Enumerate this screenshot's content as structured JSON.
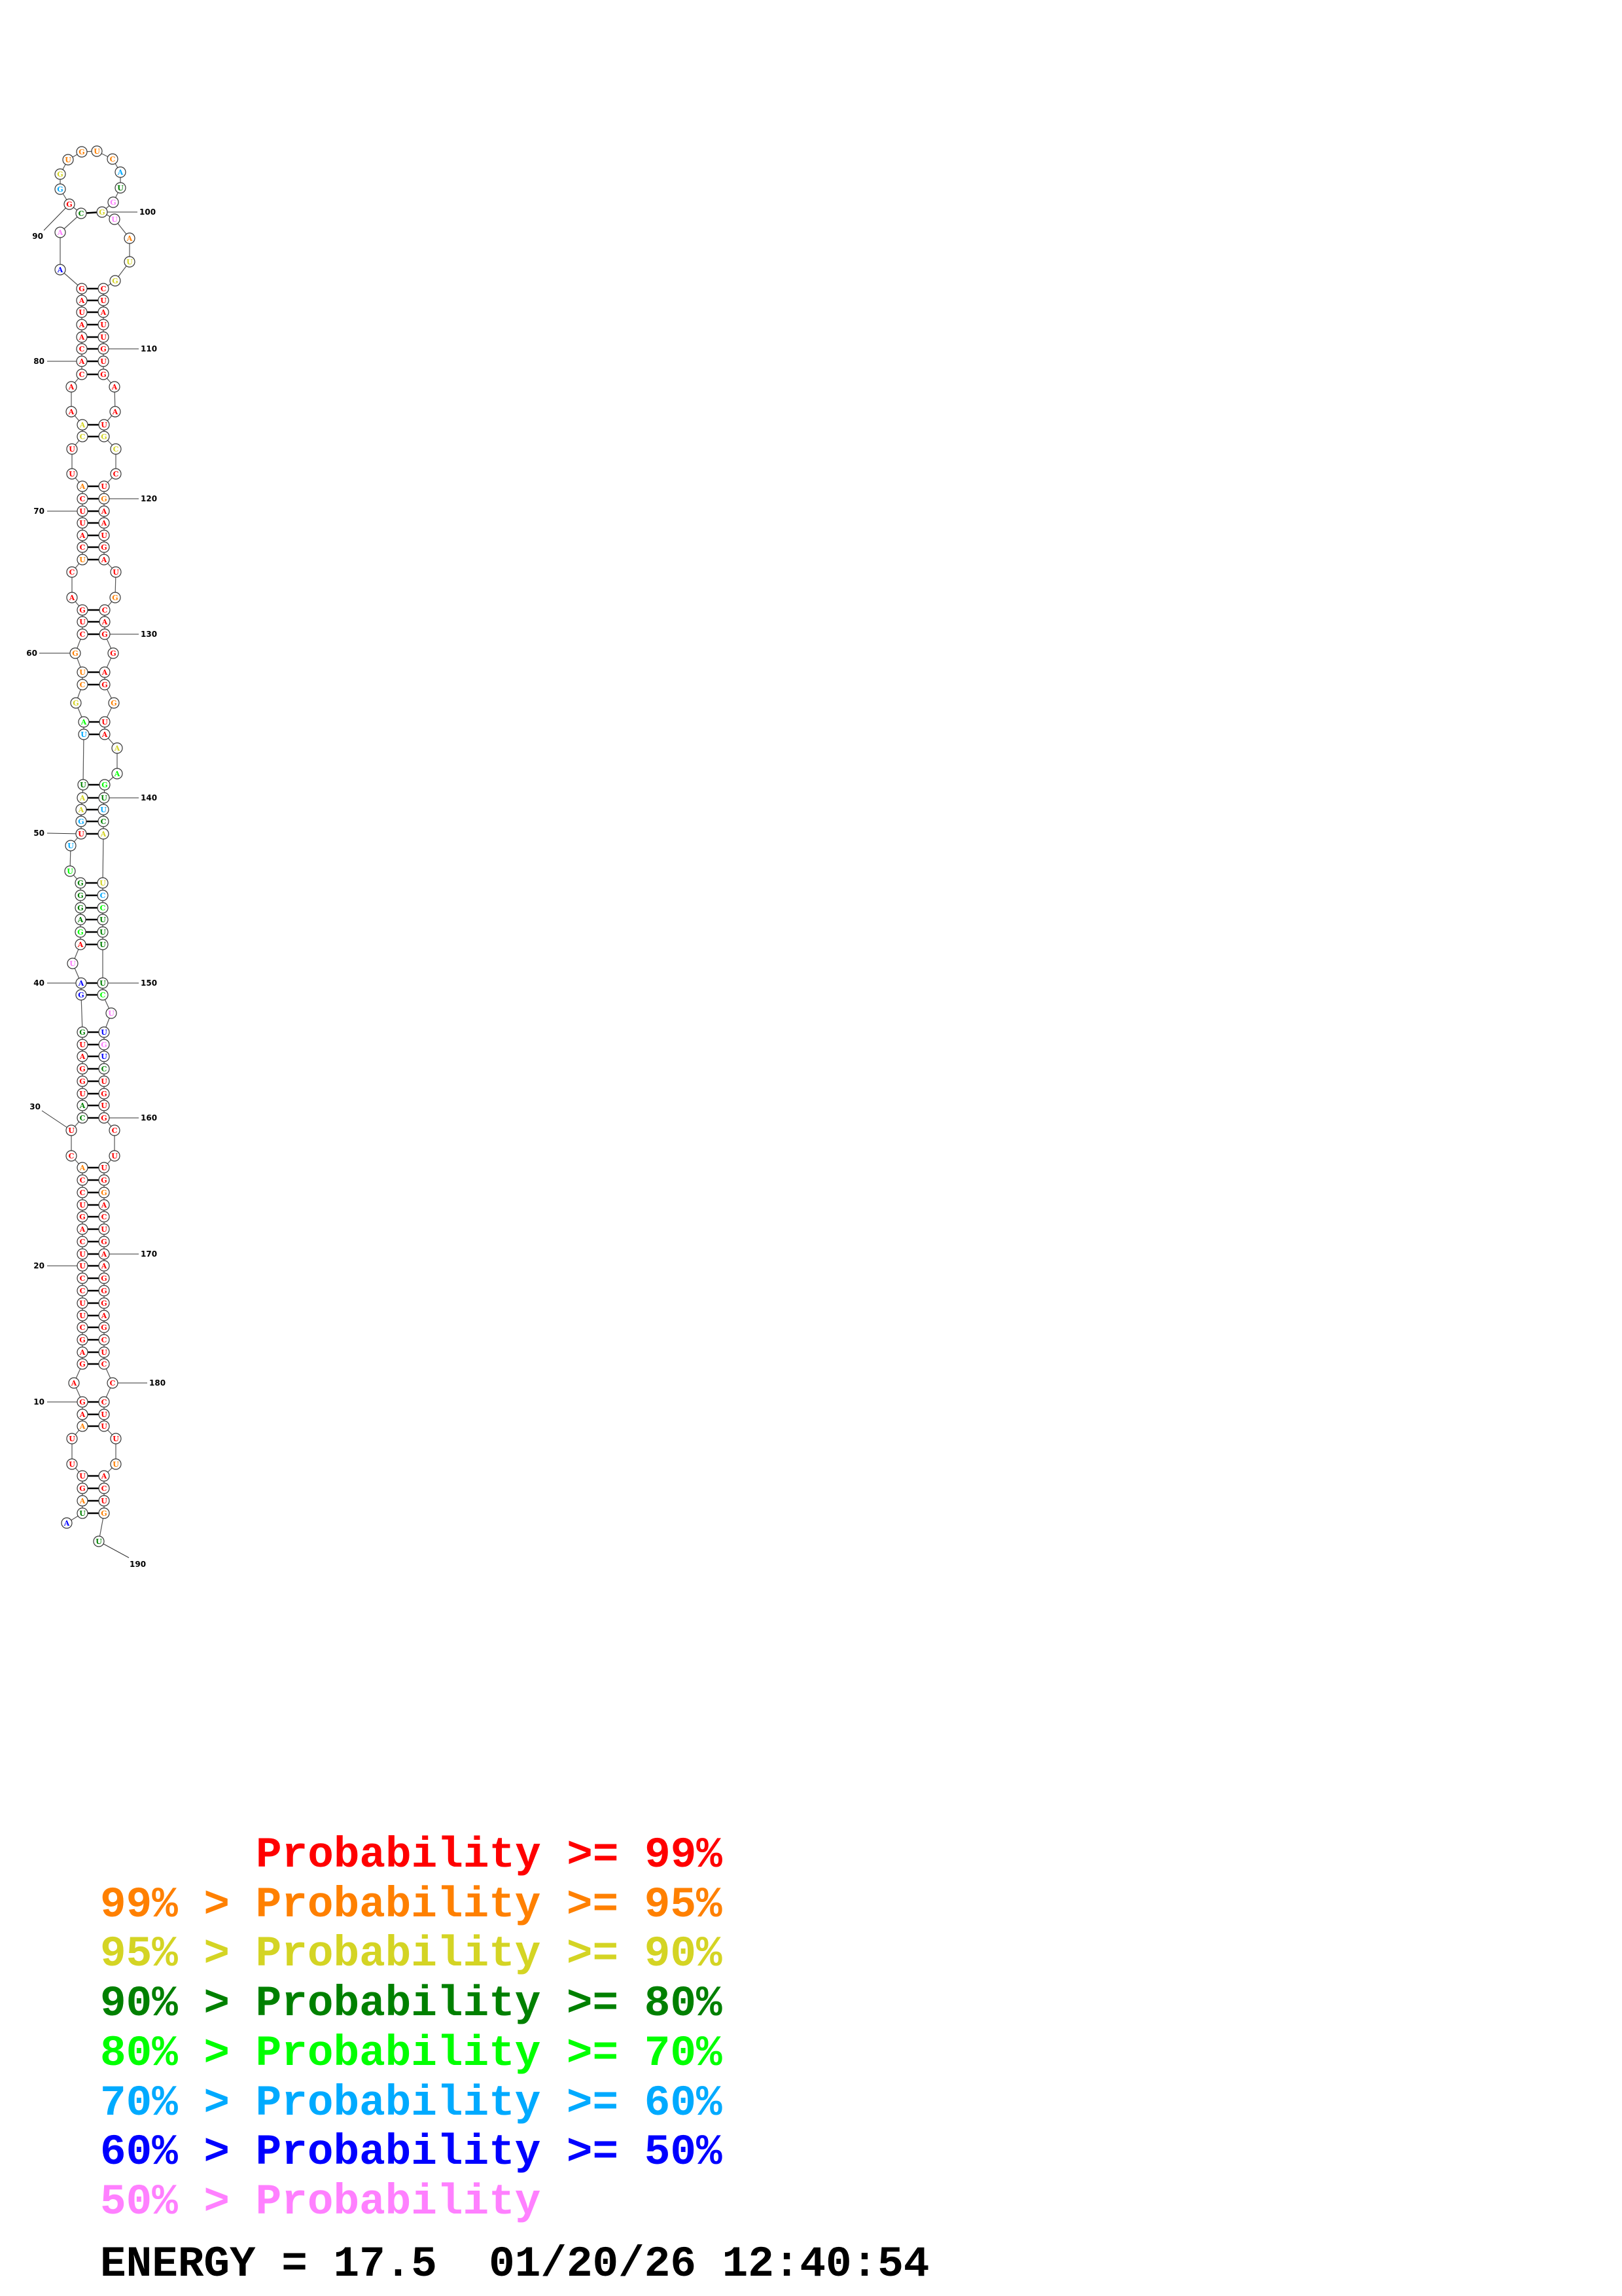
{
  "structure": {
    "sequence": "AUAGUUUAAGAGAGCUUCCUUCAGUCCACUCAUGGAUGGAUAGAGGGUUUGAAUUAGCUGCUGACUCAUUCAUUCAAACACAAUAGAACGGGUGUCAUGGUAUGCUAUUGUGAAUGCCUGAAUGAUGCAGGAGGUAAAGUUCAUCCUUUUCUUGUCUGUGCUUGGACUGAAGGGAGCUCCCUUUUACUGU",
    "probability_class": "6310000100000000000000000001003300000366704333345052235421110000010000010022000000000067305211115372712200000000000220010000001000000100244353225433334767630000000010000000000000000000100013 6",
    "class_colors": [
      "#ff0000",
      "#ff8000",
      "#d4d424",
      "#008000",
      "#00ff00",
      "#00aaff",
      "#0000ff",
      "#ff80ff"
    ],
    "pairs": [
      [
        2,
        189
      ],
      [
        3,
        188
      ],
      [
        4,
        187
      ],
      [
        5,
        186
      ],
      [
        8,
        183
      ],
      [
        9,
        182
      ],
      [
        10,
        181
      ],
      [
        12,
        179
      ],
      [
        13,
        178
      ],
      [
        14,
        177
      ],
      [
        15,
        176
      ],
      [
        16,
        175
      ],
      [
        17,
        174
      ],
      [
        18,
        173
      ],
      [
        19,
        172
      ],
      [
        20,
        171
      ],
      [
        21,
        170
      ],
      [
        22,
        169
      ],
      [
        23,
        168
      ],
      [
        24,
        167
      ],
      [
        25,
        166
      ],
      [
        26,
        165
      ],
      [
        27,
        164
      ],
      [
        28,
        163
      ],
      [
        31,
        160
      ],
      [
        32,
        159
      ],
      [
        33,
        158
      ],
      [
        34,
        157
      ],
      [
        35,
        156
      ],
      [
        36,
        155
      ],
      [
        37,
        154
      ],
      [
        38,
        153
      ],
      [
        39,
        151
      ],
      [
        40,
        150
      ],
      [
        42,
        149
      ],
      [
        43,
        148
      ],
      [
        44,
        147
      ],
      [
        45,
        146
      ],
      [
        46,
        145
      ],
      [
        47,
        144
      ],
      [
        50,
        143
      ],
      [
        51,
        142
      ],
      [
        52,
        141
      ],
      [
        53,
        140
      ],
      [
        54,
        139
      ],
      [
        55,
        136
      ],
      [
        56,
        135
      ],
      [
        58,
        133
      ],
      [
        59,
        132
      ],
      [
        61,
        130
      ],
      [
        62,
        129
      ],
      [
        63,
        128
      ],
      [
        66,
        125
      ],
      [
        67,
        124
      ],
      [
        68,
        123
      ],
      [
        69,
        122
      ],
      [
        70,
        121
      ],
      [
        71,
        120
      ],
      [
        72,
        119
      ],
      [
        75,
        116
      ],
      [
        76,
        115
      ],
      [
        79,
        112
      ],
      [
        80,
        111
      ],
      [
        81,
        110
      ],
      [
        82,
        109
      ],
      [
        83,
        108
      ],
      [
        84,
        107
      ],
      [
        85,
        106
      ],
      [
        86,
        105
      ],
      [
        89,
        100
      ]
    ],
    "position_labels": [
      "10",
      "20",
      "30",
      "40",
      "50",
      "60",
      "70",
      "80",
      "90",
      "100",
      "110",
      "120",
      "130",
      "140",
      "150",
      "160",
      "170",
      "180",
      "190"
    ]
  },
  "legend": {
    "rows": [
      {
        "text": "Probability >= 99%",
        "color": "#ff0000"
      },
      {
        "text": "99% > Probability >= 95%",
        "color": "#ff8000"
      },
      {
        "text": "95% > Probability >= 90%",
        "color": "#d4d424"
      },
      {
        "text": "90% > Probability >= 80%",
        "color": "#008000"
      },
      {
        "text": "80% > Probability >= 70%",
        "color": "#00ff00"
      },
      {
        "text": "70% > Probability >= 60%",
        "color": "#00aaff"
      },
      {
        "text": "60% > Probability >= 50%",
        "color": "#0000ff"
      },
      {
        "text": "50% > Probability",
        "color": "#ff80ff"
      }
    ]
  },
  "footer": {
    "energy_label": "ENERGY",
    "equals": "=",
    "energy_value": "17.5",
    "date": "01/20/26",
    "time": "12:40:54"
  }
}
